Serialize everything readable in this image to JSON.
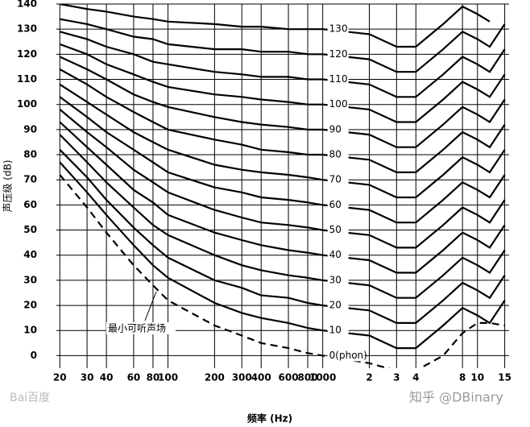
{
  "chart_data": {
    "type": "line",
    "xlabel": "频率 (Hz)",
    "ylabel": "声压级 (dB)",
    "annotation": "最小可听声场",
    "watermarks": [
      "Bai百度",
      "知乎 @DBinary"
    ],
    "xscale": "log",
    "grid": true,
    "color": "#000000",
    "x": [
      20,
      30,
      40,
      60,
      80,
      100,
      200,
      300,
      400,
      600,
      800,
      1000,
      2000,
      3000,
      4000,
      6000,
      8000,
      10000,
      12000,
      15000
    ],
    "xlim": [
      19,
      16000
    ],
    "xticks": [
      20,
      30,
      40,
      60,
      80,
      100,
      200,
      300,
      400,
      600,
      800,
      1000,
      {
        "value": 2000,
        "label": "2"
      },
      {
        "value": 3000,
        "label": "3"
      },
      {
        "value": 4000,
        "label": "4"
      },
      {
        "value": 8000,
        "label": "8"
      },
      {
        "value": 10000,
        "label": "10"
      },
      {
        "value": 15000,
        "label": "15"
      }
    ],
    "ylim": [
      -5,
      140
    ],
    "yticks": [
      0,
      10,
      20,
      30,
      40,
      50,
      60,
      70,
      80,
      90,
      100,
      110,
      120,
      130,
      140
    ],
    "series": [
      {
        "name": "0(phon)",
        "dashed": true,
        "values": [
          72,
          59,
          49,
          36,
          28,
          22,
          12,
          8,
          5,
          3,
          1,
          0,
          -3,
          -6,
          -6,
          0,
          9,
          13,
          13,
          12
        ]
      },
      {
        "name": "10",
        "values": [
          77,
          65,
          56,
          44,
          36,
          31,
          21,
          17,
          15,
          13,
          11,
          10,
          8,
          3,
          3,
          12,
          19,
          16,
          13,
          22
        ]
      },
      {
        "name": "20",
        "values": [
          82,
          71,
          62,
          51,
          44,
          39,
          30,
          27,
          24,
          23,
          21,
          20,
          18,
          13,
          13,
          22,
          29,
          26,
          23,
          32
        ]
      },
      {
        "name": "30",
        "values": [
          88,
          77,
          69,
          59,
          52,
          48,
          40,
          36,
          34,
          32,
          31,
          30,
          28,
          23,
          23,
          32,
          39,
          36,
          33,
          42
        ]
      },
      {
        "name": "40",
        "values": [
          93,
          83,
          76,
          66,
          61,
          56,
          49,
          46,
          44,
          42,
          41,
          40,
          38,
          33,
          33,
          42,
          49,
          46,
          43,
          52
        ]
      },
      {
        "name": "50",
        "values": [
          98,
          89,
          83,
          74,
          69,
          65,
          58,
          55,
          53,
          52,
          51,
          50,
          48,
          43,
          43,
          52,
          59,
          56,
          53,
          62
        ]
      },
      {
        "name": "60",
        "values": [
          103,
          95,
          89,
          82,
          77,
          73,
          67,
          65,
          63,
          62,
          61,
          60,
          58,
          53,
          53,
          62,
          69,
          66,
          63,
          72
        ]
      },
      {
        "name": "70",
        "values": [
          108,
          101,
          96,
          89,
          85,
          82,
          76,
          74,
          73,
          72,
          71,
          70,
          68,
          63,
          63,
          72,
          79,
          76,
          73,
          82
        ]
      },
      {
        "name": "80",
        "values": [
          114,
          108,
          103,
          97,
          93,
          90,
          86,
          84,
          82,
          81,
          80,
          80,
          78,
          73,
          73,
          82,
          89,
          86,
          83,
          92
        ]
      },
      {
        "name": "90",
        "values": [
          119,
          114,
          110,
          104,
          101,
          99,
          95,
          93,
          92,
          91,
          90,
          90,
          88,
          83,
          83,
          92,
          99,
          96,
          93,
          102
        ]
      },
      {
        "name": "100",
        "values": [
          124,
          120,
          116,
          112,
          109,
          107,
          104,
          103,
          102,
          101,
          100,
          100,
          98,
          93,
          93,
          102,
          109,
          106,
          103,
          112
        ]
      },
      {
        "name": "110",
        "values": [
          129,
          126,
          123,
          120,
          117,
          116,
          113,
          112,
          111,
          111,
          110,
          110,
          108,
          103,
          103,
          112,
          119,
          116,
          113,
          122
        ]
      },
      {
        "name": "120",
        "values": [
          134,
          132,
          130,
          127,
          126,
          124,
          122,
          122,
          121,
          121,
          120,
          120,
          118,
          113,
          113,
          122,
          129,
          126,
          123,
          132
        ]
      },
      {
        "name": "130",
        "values": [
          140,
          138,
          137,
          135,
          134,
          133,
          132,
          131,
          131,
          130,
          130,
          130,
          128,
          123,
          123,
          132,
          139,
          136,
          133,
          null
        ]
      }
    ]
  }
}
